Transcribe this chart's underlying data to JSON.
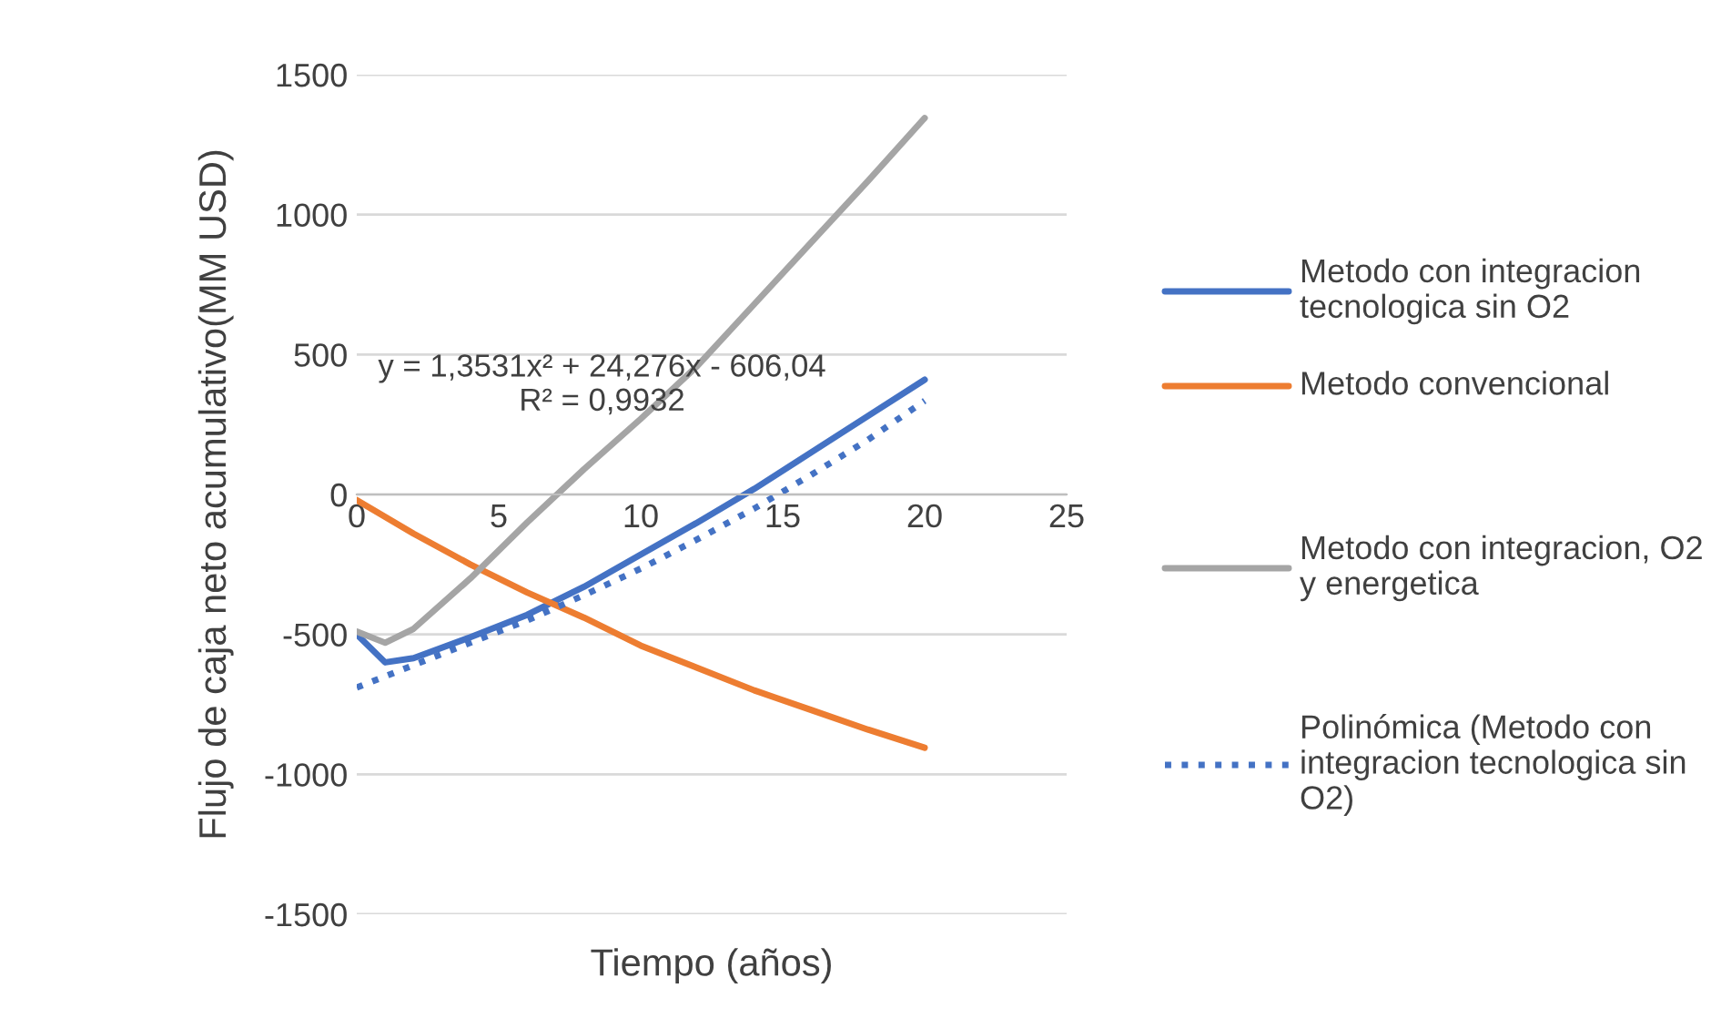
{
  "chart_data": {
    "type": "line",
    "xlabel": "Tiempo (años)",
    "ylabel": "Flujo de caja neto acumulativo(MM USD)",
    "xlim": [
      0,
      25
    ],
    "xticks": [
      0,
      5,
      10,
      15,
      20,
      25
    ],
    "ylim": [
      -1500,
      1500
    ],
    "yticks": [
      -1500,
      -1000,
      -500,
      0,
      500,
      1000,
      1500
    ],
    "grid": "y",
    "legend": "right",
    "marker": "none",
    "series": [
      {
        "name": "Metodo con integracion tecnologica sin O2",
        "color": "#4472c4",
        "line_style": "solid",
        "x": [
          0,
          1,
          2,
          4,
          6,
          8,
          10,
          12,
          14,
          16,
          18,
          20
        ],
        "values": [
          -500,
          -600,
          -585,
          -510,
          -430,
          -330,
          -215,
          -100,
          20,
          150,
          280,
          410
        ]
      },
      {
        "name": "Metodo convencional",
        "color": "#ed7d31",
        "line_style": "solid",
        "x": [
          0,
          2,
          4,
          6,
          8,
          10,
          12,
          14,
          16,
          18,
          20
        ],
        "values": [
          -20,
          -140,
          -250,
          -350,
          -440,
          -540,
          -620,
          -700,
          -770,
          -840,
          -905
        ]
      },
      {
        "name": "Metodo con integracion, O2 y energetica",
        "color": "#a5a5a5",
        "line_style": "solid",
        "x": [
          0,
          1,
          2,
          4,
          6,
          8,
          10,
          12,
          14,
          16,
          18,
          20
        ],
        "values": [
          -490,
          -530,
          -480,
          -300,
          -100,
          90,
          270,
          460,
          680,
          900,
          1120,
          1345
        ]
      },
      {
        "name": "Polinómica (Metodo con integracion tecnologica sin O2)",
        "color": "#4472c4",
        "line_style": "dotted",
        "x": [
          0,
          2,
          4,
          6,
          8,
          10,
          12,
          14,
          16,
          18,
          20
        ],
        "values": [
          -690,
          -610,
          -530,
          -450,
          -360,
          -265,
          -160,
          -50,
          70,
          195,
          335
        ]
      }
    ],
    "annotations": [
      "y = 1,3531x² + 24,276x - 606,04\nR² = 0,9932"
    ]
  }
}
